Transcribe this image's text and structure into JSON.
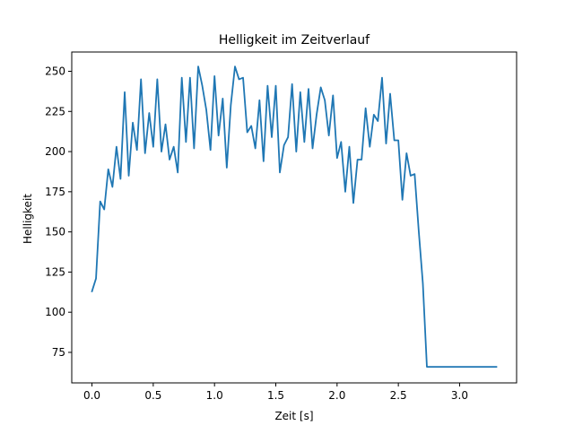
{
  "chart_data": {
    "type": "line",
    "title": "Helligkeit im Zeitverlauf",
    "xlabel": "Zeit [s]",
    "ylabel": "Helligkeit",
    "xlim": [
      -0.165,
      3.465
    ],
    "ylim": [
      56,
      262
    ],
    "xticks": [
      0.0,
      0.5,
      1.0,
      1.5,
      2.0,
      2.5,
      3.0
    ],
    "xtick_labels": [
      "0.0",
      "0.5",
      "1.0",
      "1.5",
      "2.0",
      "2.5",
      "3.0"
    ],
    "yticks": [
      75,
      100,
      125,
      150,
      175,
      200,
      225,
      250
    ],
    "ytick_labels": [
      "75",
      "100",
      "125",
      "150",
      "175",
      "200",
      "225",
      "250"
    ],
    "grid": false,
    "colors": {
      "line": "#1f77b4",
      "axes": "#000000",
      "background": "#ffffff"
    },
    "series": [
      {
        "x": [
          0.0,
          0.033,
          0.067,
          0.1,
          0.133,
          0.167,
          0.2,
          0.233,
          0.267,
          0.3,
          0.333,
          0.367,
          0.4,
          0.433,
          0.467,
          0.5,
          0.533,
          0.567,
          0.6,
          0.633,
          0.667,
          0.7,
          0.733,
          0.767,
          0.8,
          0.833,
          0.867,
          0.9,
          0.933,
          0.967,
          1.0,
          1.033,
          1.067,
          1.1,
          1.133,
          1.167,
          1.2,
          1.233,
          1.267,
          1.3,
          1.333,
          1.367,
          1.4,
          1.433,
          1.467,
          1.5,
          1.533,
          1.567,
          1.6,
          1.633,
          1.667,
          1.7,
          1.733,
          1.767,
          1.8,
          1.833,
          1.867,
          1.9,
          1.933,
          1.967,
          2.0,
          2.033,
          2.067,
          2.1,
          2.133,
          2.167,
          2.2,
          2.233,
          2.267,
          2.3,
          2.333,
          2.367,
          2.4,
          2.433,
          2.467,
          2.5,
          2.533,
          2.567,
          2.6,
          2.633,
          2.667,
          2.7,
          2.733,
          2.767,
          2.8,
          2.833,
          2.867,
          2.9,
          2.933,
          2.967,
          3.0,
          3.033,
          3.067,
          3.1,
          3.133,
          3.167,
          3.2,
          3.233,
          3.267,
          3.3
        ],
        "values": [
          113,
          121,
          169,
          164,
          189,
          178,
          203,
          183,
          237,
          185,
          218,
          201,
          245,
          199,
          224,
          203,
          245,
          200,
          217,
          195,
          203,
          187,
          246,
          206,
          246,
          202,
          253,
          241,
          226,
          201,
          247,
          210,
          233,
          190,
          229,
          253,
          245,
          246,
          212,
          216,
          202,
          232,
          194,
          241,
          209,
          241,
          187,
          204,
          209,
          242,
          200,
          237,
          206,
          239,
          202,
          223,
          240,
          232,
          210,
          235,
          196,
          206,
          175,
          203,
          168,
          195,
          195,
          227,
          203,
          223,
          219,
          246,
          205,
          236,
          207,
          207,
          170,
          199,
          185,
          186,
          150,
          118,
          66,
          66,
          66,
          66,
          66,
          66,
          66,
          66,
          66,
          66,
          66,
          66,
          66,
          66,
          66,
          66,
          66,
          66
        ]
      }
    ]
  }
}
